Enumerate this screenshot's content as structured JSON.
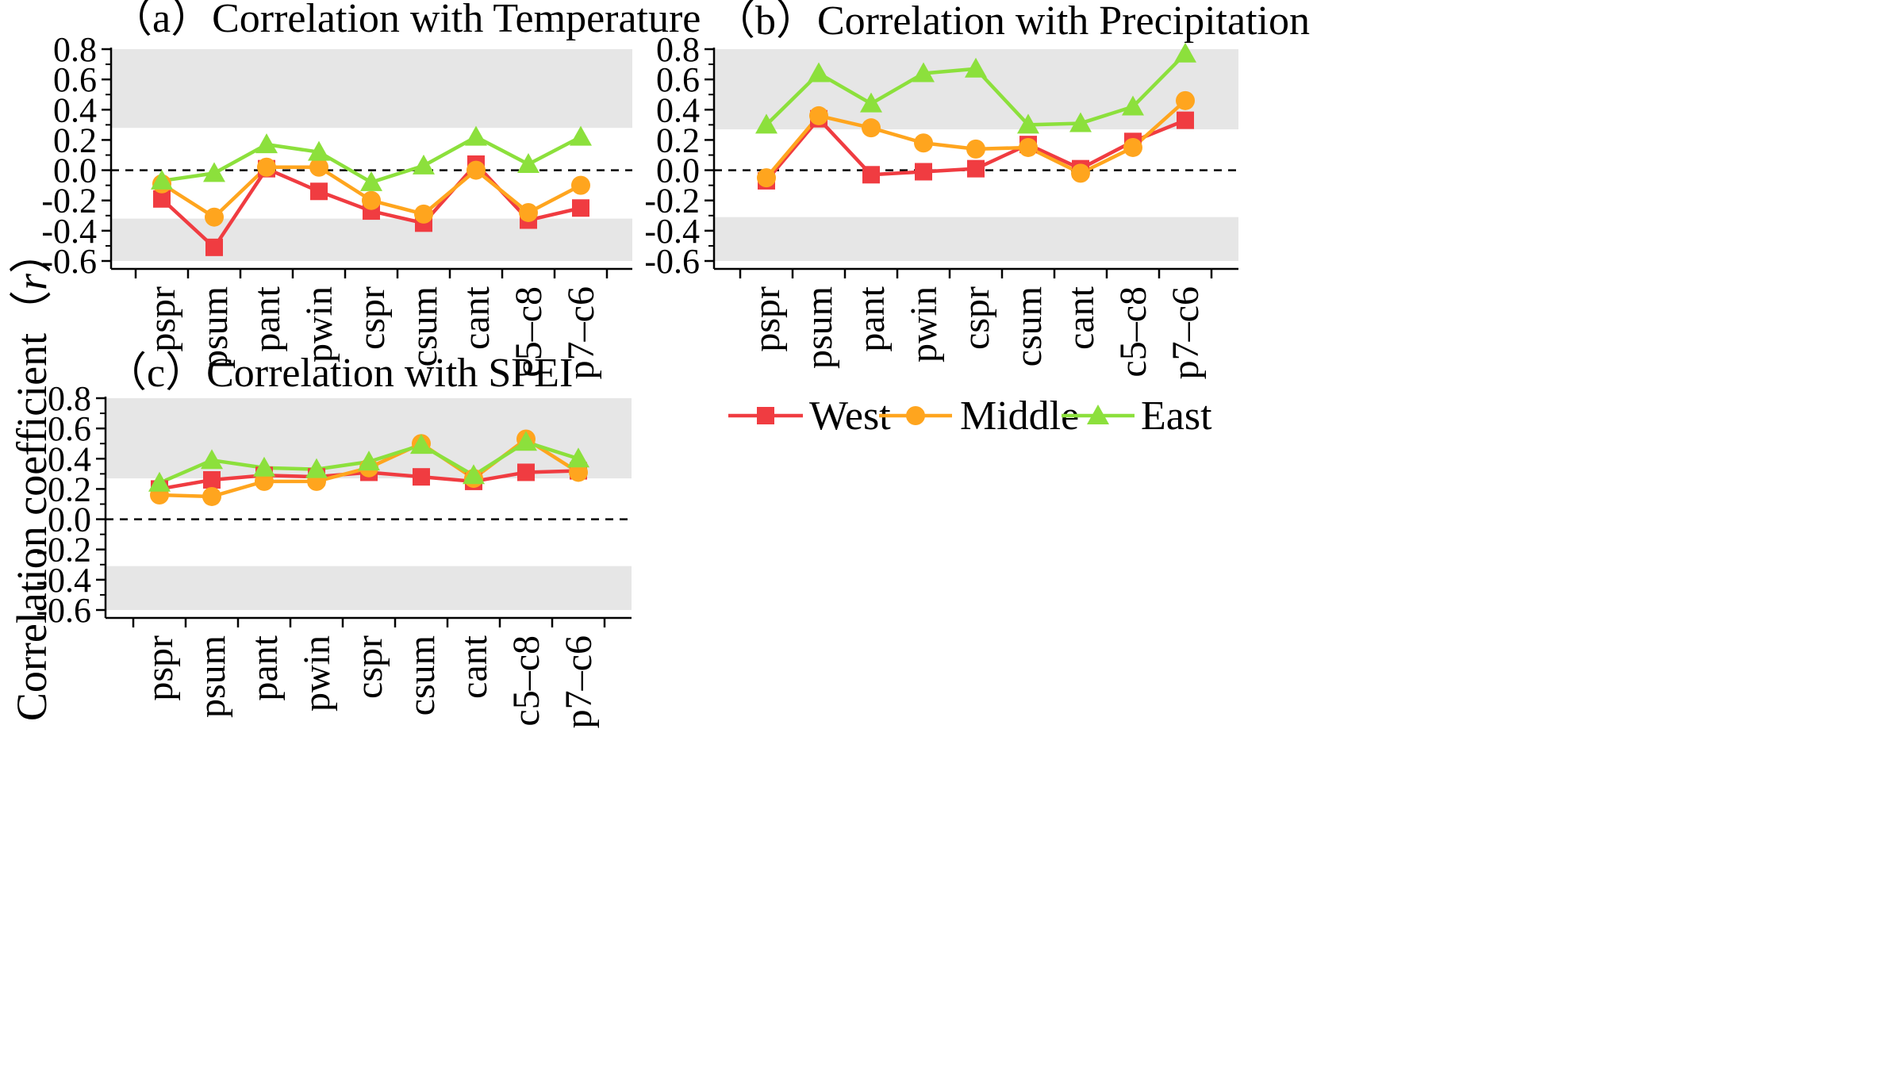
{
  "figure": {
    "ylabel_main": "Correlation coefficient（",
    "ylabel_var": "r",
    "ylabel_close": "）"
  },
  "legend": {
    "entries": [
      {
        "name": "West",
        "color": "#f03c41",
        "marker": "square"
      },
      {
        "name": "Middle",
        "color": "#ffa51e",
        "marker": "circle"
      },
      {
        "name": "East",
        "color": "#8ce03c",
        "marker": "triangle"
      }
    ]
  },
  "chart_data": [
    {
      "type": "line",
      "title": "（a）Correlation with Temperature",
      "categories": [
        "pspr",
        "psum",
        "pant",
        "pwin",
        "cspr",
        "csum",
        "cant",
        "c5–c8",
        "p7–c6"
      ],
      "ylim": [
        -0.6,
        0.8
      ],
      "yticks": [
        "0.8",
        "0.6",
        "0.4",
        "0.2",
        "0.0",
        "-0.2",
        "-0.4",
        "-0.6"
      ],
      "significance_band": {
        "upper": 0.28,
        "lower": -0.32
      },
      "series": [
        {
          "name": "West",
          "values": [
            -0.19,
            -0.51,
            0.01,
            -0.14,
            -0.27,
            -0.35,
            0.04,
            -0.33,
            -0.25
          ]
        },
        {
          "name": "Middle",
          "values": [
            -0.09,
            -0.31,
            0.02,
            0.02,
            -0.2,
            -0.29,
            0.0,
            -0.28,
            -0.1
          ]
        },
        {
          "name": "East",
          "values": [
            -0.07,
            -0.02,
            0.17,
            0.12,
            -0.08,
            0.03,
            0.22,
            0.04,
            0.22
          ]
        }
      ]
    },
    {
      "type": "line",
      "title": "（b）Correlation with Precipitation",
      "categories": [
        "pspr",
        "psum",
        "pant",
        "pwin",
        "cspr",
        "csum",
        "cant",
        "c5–c8",
        "p7–c6"
      ],
      "ylim": [
        -0.6,
        0.8
      ],
      "yticks": [
        "0.8",
        "0.6",
        "0.4",
        "0.2",
        "0.0",
        "-0.2",
        "-0.4",
        "-0.6"
      ],
      "significance_band": {
        "upper": 0.27,
        "lower": -0.31
      },
      "series": [
        {
          "name": "West",
          "values": [
            -0.07,
            0.34,
            -0.03,
            -0.01,
            0.01,
            0.17,
            0.01,
            0.19,
            0.33
          ]
        },
        {
          "name": "Middle",
          "values": [
            -0.05,
            0.36,
            0.28,
            0.18,
            0.14,
            0.15,
            -0.02,
            0.15,
            0.46
          ]
        },
        {
          "name": "East",
          "values": [
            0.3,
            0.64,
            0.44,
            0.64,
            0.67,
            0.3,
            0.31,
            0.42,
            0.77
          ]
        }
      ]
    },
    {
      "type": "line",
      "title": "（c）Correlation with SPEI",
      "categories": [
        "pspr",
        "psum",
        "pant",
        "pwin",
        "cspr",
        "csum",
        "cant",
        "c5–c8",
        "p7–c6"
      ],
      "ylim": [
        -0.6,
        0.8
      ],
      "yticks": [
        "0.8",
        "0.6",
        "0.4",
        "0.2",
        "0.0",
        "-0.2",
        "-0.4",
        "-0.6"
      ],
      "significance_band": {
        "upper": 0.27,
        "lower": -0.31
      },
      "series": [
        {
          "name": "West",
          "values": [
            0.2,
            0.26,
            0.29,
            0.28,
            0.31,
            0.28,
            0.25,
            0.31,
            0.32
          ]
        },
        {
          "name": "Middle",
          "values": [
            0.16,
            0.15,
            0.25,
            0.25,
            0.34,
            0.5,
            0.27,
            0.53,
            0.31
          ]
        },
        {
          "name": "East",
          "values": [
            0.24,
            0.39,
            0.34,
            0.33,
            0.38,
            0.49,
            0.29,
            0.51,
            0.4
          ]
        }
      ]
    }
  ]
}
